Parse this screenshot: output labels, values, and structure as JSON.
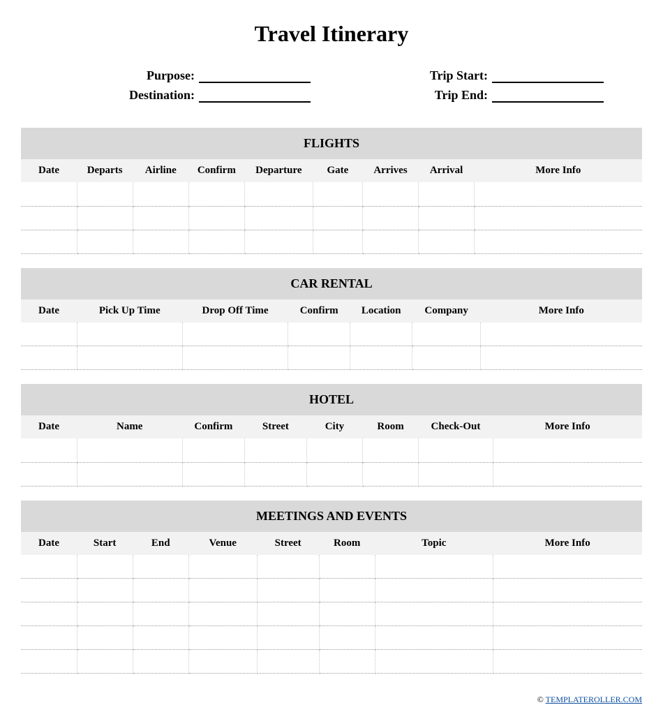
{
  "title": "Travel Itinerary",
  "header": {
    "purpose_label": "Purpose:",
    "purpose_value": "",
    "destination_label": "Destination:",
    "destination_value": "",
    "trip_start_label": "Trip Start:",
    "trip_start_value": "",
    "trip_end_label": "Trip End:",
    "trip_end_value": ""
  },
  "sections": {
    "flights": {
      "title": "FLIGHTS",
      "columns": [
        "Date",
        "Departs",
        "Airline",
        "Confirm",
        "Departure",
        "Gate",
        "Arrives",
        "Arrival",
        "More Info"
      ],
      "col_widths": [
        "9%",
        "9%",
        "9%",
        "9%",
        "11%",
        "8%",
        "9%",
        "9%",
        "27%"
      ],
      "row_count": 3
    },
    "car_rental": {
      "title": "CAR RENTAL",
      "columns": [
        "Date",
        "Pick Up Time",
        "Drop Off Time",
        "Confirm",
        "Location",
        "Company",
        "More Info"
      ],
      "col_widths": [
        "9%",
        "17%",
        "17%",
        "10%",
        "10%",
        "11%",
        "26%"
      ],
      "row_count": 2
    },
    "hotel": {
      "title": "HOTEL",
      "columns": [
        "Date",
        "Name",
        "Confirm",
        "Street",
        "City",
        "Room",
        "Check-Out",
        "More Info"
      ],
      "col_widths": [
        "9%",
        "17%",
        "10%",
        "10%",
        "9%",
        "9%",
        "12%",
        "24%"
      ],
      "row_count": 2
    },
    "meetings": {
      "title": "MEETINGS AND EVENTS",
      "columns": [
        "Date",
        "Start",
        "End",
        "Venue",
        "Street",
        "Room",
        "Topic",
        "More Info"
      ],
      "col_widths": [
        "9%",
        "9%",
        "9%",
        "11%",
        "10%",
        "9%",
        "19%",
        "24%"
      ],
      "row_count": 5
    }
  },
  "footer": {
    "copyright": "©",
    "link_text": "TEMPLATEROLLER.COM"
  },
  "style": {
    "section_header_bg": "#d9d9d9",
    "table_header_bg": "#f2f2f2",
    "row_border_color": "#9a9a9a",
    "cell_vborder_color": "#c8c8c8",
    "underline_color": "#000000",
    "link_color": "#0b4fa0",
    "title_fontsize": 32,
    "section_title_fontsize": 18,
    "header_label_fontsize": 18,
    "th_fontsize": 15
  }
}
